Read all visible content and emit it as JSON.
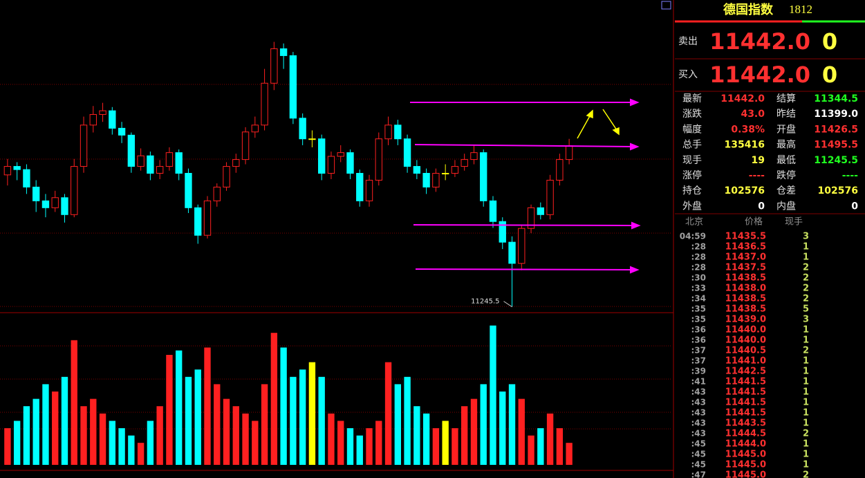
{
  "chart_data": {
    "type": "candlestick",
    "ylim": [
      11240,
      11535
    ],
    "vlim": [
      0,
      100
    ],
    "up_color": "#ff2020",
    "down_color": "#00ffff",
    "flat_color": "#ffff00",
    "open": [
      11370,
      11378,
      11375,
      11358.5,
      11345.5,
      11339,
      11348.5,
      11332.5,
      11378,
      11417,
      11427,
      11430.5,
      11414,
      11407.5,
      11378,
      11388,
      11371.5,
      11378,
      11391,
      11371.5,
      11339,
      11313,
      11345.5,
      11358.5,
      11378,
      11384.5,
      11410.5,
      11417,
      11456.5,
      11489,
      11482.5,
      11423.5,
      11404,
      11404,
      11371.5,
      11387.5,
      11391,
      11371.5,
      11345.5,
      11365,
      11404,
      11417,
      11404,
      11378,
      11371.5,
      11358.5,
      11371.5,
      11371.5,
      11378,
      11384.5,
      11391,
      11345.5,
      11326,
      11306.5,
      11286.5,
      11319.5,
      11339,
      11332.5,
      11365,
      11384.5
    ],
    "high": [
      11385,
      11382,
      11380,
      11365,
      11352,
      11355,
      11352,
      11385,
      11425,
      11435,
      11438,
      11434,
      11420,
      11410,
      11395,
      11392,
      11384,
      11396,
      11394,
      11376,
      11342,
      11350,
      11362,
      11382,
      11390,
      11415,
      11425,
      11470,
      11495.5,
      11494,
      11486,
      11428,
      11412,
      11408,
      11392,
      11398,
      11394,
      11375,
      11370,
      11410,
      11425,
      11422,
      11408,
      11384,
      11376,
      11376,
      11380,
      11384,
      11390,
      11398,
      11394,
      11350,
      11330,
      11312,
      11322,
      11342,
      11344,
      11370,
      11390,
      11404
    ],
    "low": [
      11360,
      11365,
      11352,
      11335,
      11330,
      11335,
      11325,
      11330,
      11372,
      11410,
      11420,
      11408,
      11400,
      11372,
      11374,
      11365,
      11366,
      11374,
      11365,
      11334,
      11305,
      11310,
      11340,
      11355,
      11372,
      11380,
      11405,
      11412,
      11450,
      11470,
      11418,
      11398,
      11396,
      11365,
      11366,
      11382,
      11366,
      11340,
      11340,
      11360,
      11398,
      11398,
      11372,
      11366,
      11352,
      11354,
      11365,
      11368,
      11374,
      11380,
      11340,
      11320,
      11300,
      11245.5,
      11280,
      11315,
      11328,
      11328,
      11360,
      11380
    ],
    "close": [
      11378,
      11375,
      11358.5,
      11345.5,
      11339,
      11348.5,
      11332.5,
      11378,
      11417,
      11427,
      11430.5,
      11414,
      11407.5,
      11378,
      11388,
      11371.5,
      11378,
      11391,
      11371.5,
      11339,
      11313,
      11345.5,
      11358.5,
      11378,
      11384.5,
      11410.5,
      11417,
      11456.5,
      11489,
      11482.5,
      11423.5,
      11404,
      11404,
      11371.5,
      11387.5,
      11391,
      11371.5,
      11345.5,
      11365,
      11404,
      11417,
      11404,
      11378,
      11371.5,
      11358.5,
      11371.5,
      11371.5,
      11378,
      11384.5,
      11391,
      11345.5,
      11326,
      11306.5,
      11286.5,
      11319.5,
      11339,
      11332.5,
      11365,
      11384.5,
      11397.5
    ],
    "volume": [
      25,
      30,
      40,
      45,
      55,
      50,
      60,
      85,
      40,
      45,
      35,
      30,
      25,
      20,
      15,
      30,
      40,
      75,
      78,
      60,
      65,
      80,
      55,
      45,
      40,
      35,
      30,
      55,
      90,
      80,
      60,
      65,
      70,
      60,
      35,
      30,
      25,
      20,
      25,
      30,
      70,
      55,
      60,
      40,
      35,
      25,
      30,
      25,
      40,
      45,
      55,
      95,
      50,
      55,
      45,
      20,
      25,
      35,
      25,
      15
    ],
    "low_marker": 53
  },
  "quote": {
    "title": "德国指数",
    "code": "1812",
    "sell": {
      "label": "卖出",
      "price": "11442.0",
      "qty": 0
    },
    "buy": {
      "label": "买入",
      "price": "11442.0",
      "qty": 0
    },
    "fields": [
      [
        {
          "label": "最新",
          "value": "11442.0",
          "color": "#ff3030"
        },
        {
          "label": "结算",
          "value": "11344.5",
          "color": "#20ff20"
        }
      ],
      [
        {
          "label": "涨跌",
          "value": "43.0",
          "color": "#ff3030"
        },
        {
          "label": "昨结",
          "value": "11399.0",
          "color": "#ffffff"
        }
      ],
      [
        {
          "label": "幅度",
          "value": "0.38%",
          "color": "#ff3030"
        },
        {
          "label": "开盘",
          "value": "11426.5",
          "color": "#ff3030"
        }
      ],
      [
        {
          "label": "总手",
          "value": "135416",
          "color": "#ffff40"
        },
        {
          "label": "最高",
          "value": "11495.5",
          "color": "#ff3030"
        }
      ],
      [
        {
          "label": "现手",
          "value": "19",
          "color": "#ffff40"
        },
        {
          "label": "最低",
          "value": "11245.5",
          "color": "#20ff20"
        }
      ],
      [
        {
          "label": "涨停",
          "value": "----",
          "color": "#ff3030"
        },
        {
          "label": "跌停",
          "value": "----",
          "color": "#20ff20"
        }
      ],
      [
        {
          "label": "持仓",
          "value": "102576",
          "color": "#ffff40"
        },
        {
          "label": "仓差",
          "value": "102576",
          "color": "#ffff40"
        }
      ],
      [
        {
          "label": "外盘",
          "value": "0",
          "color": "#ffffff"
        },
        {
          "label": "内盘",
          "value": "0",
          "color": "#ffffff"
        }
      ]
    ],
    "ticks": {
      "headers": [
        "北京",
        "价格",
        "现手"
      ],
      "rows": [
        [
          "04:59",
          "11435.5",
          3
        ],
        [
          ":28",
          "11436.5",
          1
        ],
        [
          ":28",
          "11437.0",
          1
        ],
        [
          ":28",
          "11437.5",
          2
        ],
        [
          ":30",
          "11438.5",
          2
        ],
        [
          ":33",
          "11438.0",
          2
        ],
        [
          ":34",
          "11438.5",
          2
        ],
        [
          ":35",
          "11438.5",
          5
        ],
        [
          ":35",
          "11439.0",
          3
        ],
        [
          ":36",
          "11440.0",
          1
        ],
        [
          ":36",
          "11440.0",
          1
        ],
        [
          ":37",
          "11440.5",
          2
        ],
        [
          ":37",
          "11441.0",
          1
        ],
        [
          ":39",
          "11442.5",
          1
        ],
        [
          ":41",
          "11441.5",
          1
        ],
        [
          ":43",
          "11441.5",
          1
        ],
        [
          ":43",
          "11441.5",
          1
        ],
        [
          ":43",
          "11441.5",
          1
        ],
        [
          ":43",
          "11443.5",
          1
        ],
        [
          ":43",
          "11444.5",
          2
        ],
        [
          ":45",
          "11444.0",
          1
        ],
        [
          ":45",
          "11445.0",
          1
        ],
        [
          ":45",
          "11445.0",
          1
        ],
        [
          ":47",
          "11445.0",
          2
        ]
      ]
    }
  }
}
